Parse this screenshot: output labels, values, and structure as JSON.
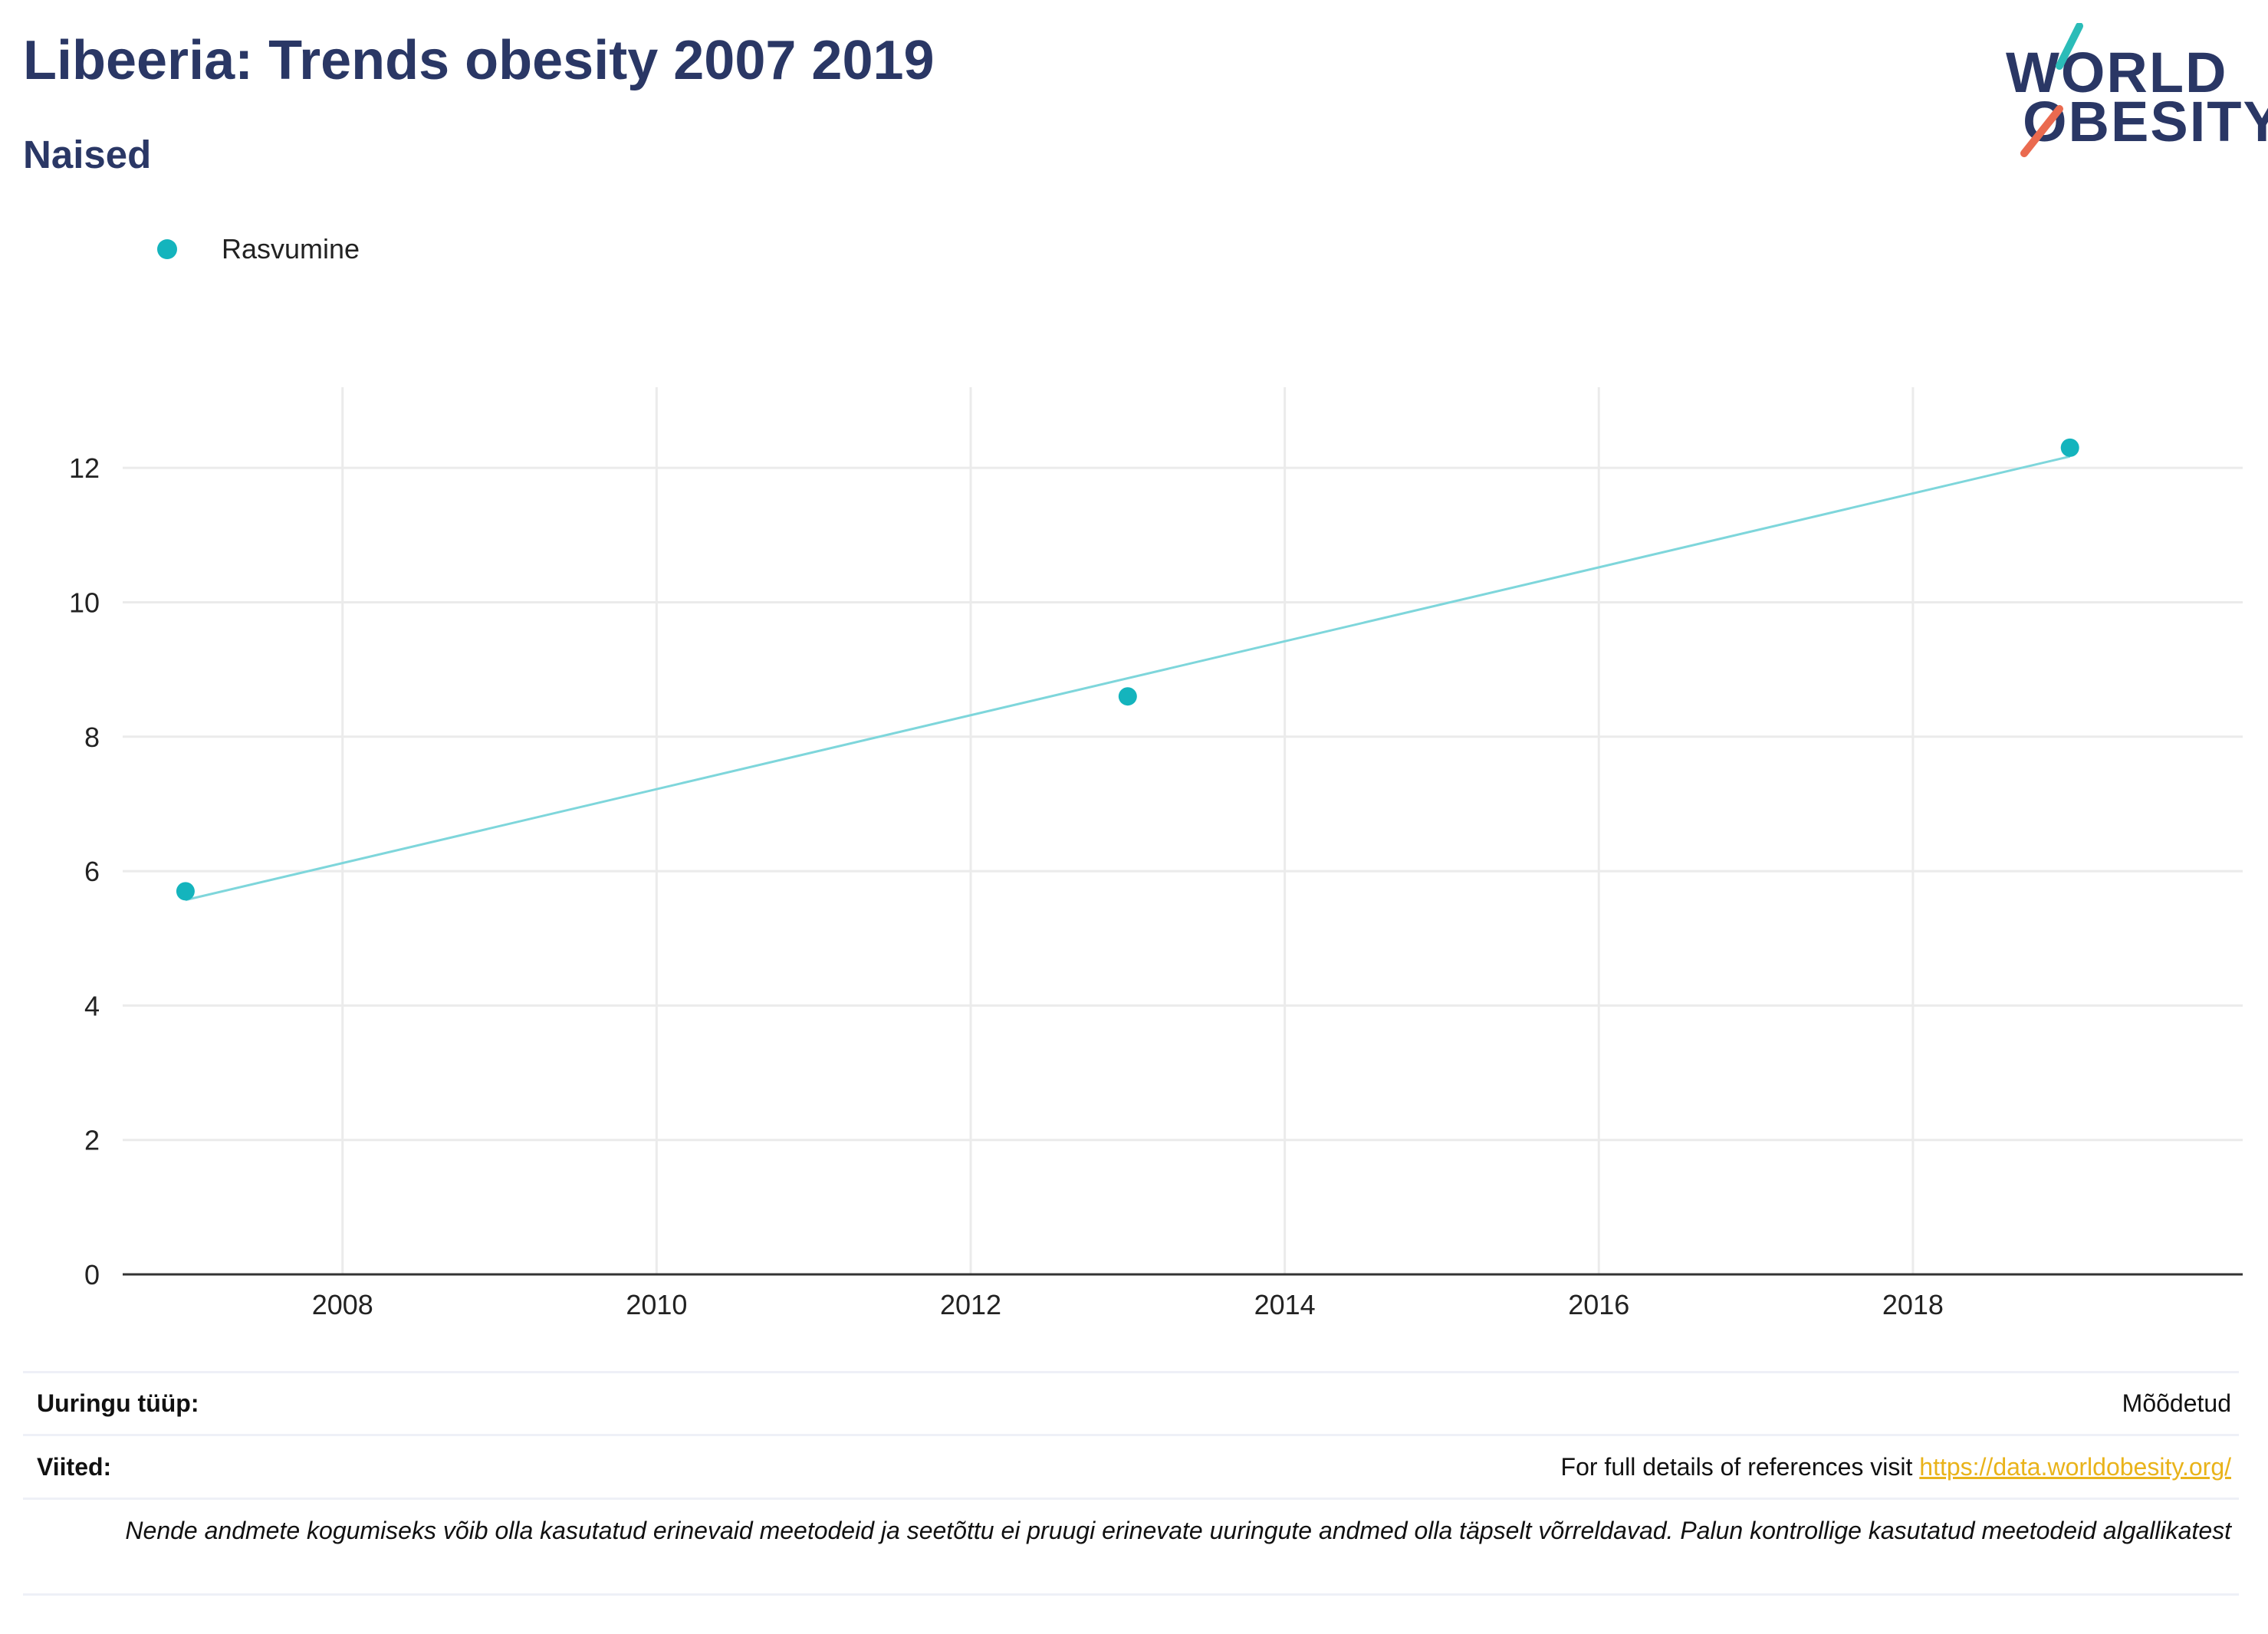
{
  "title": "Libeeria: Trends obesity 2007 2019",
  "subtitle": "Naised",
  "logo": {
    "line1": "WORLD",
    "line2": "OBESITY"
  },
  "colors": {
    "title": "#2a3765",
    "series": "#14b4bd",
    "trend": "#7ed6db",
    "link": "#e9b31a",
    "logo_teal": "#2bbcb8",
    "logo_red": "#ea6a4f"
  },
  "chart_data": {
    "type": "scatter",
    "title": "Libeeria: Trends obesity 2007 2019",
    "subtitle": "Naised",
    "series": [
      {
        "name": "Rasvumine",
        "x": [
          2007,
          2013,
          2019
        ],
        "y": [
          5.7,
          8.6,
          12.3
        ]
      }
    ],
    "trendline": {
      "x": [
        2007,
        2019
      ],
      "y": [
        5.57,
        12.17
      ]
    },
    "xlim": [
      2006.6,
      2020.1
    ],
    "ylim": [
      0,
      13.2
    ],
    "xticks": [
      "2008",
      "2010",
      "2012",
      "2014",
      "2016",
      "2018"
    ],
    "yticks": [
      "0",
      "2",
      "4",
      "6",
      "8",
      "10",
      "12"
    ],
    "grid": true,
    "legend": "top-left"
  },
  "info": {
    "survey_type_label": "Uuringu tüüp:",
    "survey_type_value": "Mõõdetud",
    "references_label": "Viited:",
    "references_text": "For full details of references visit ",
    "references_link": "https://data.worldobesity.org/",
    "note": "Nende andmete kogumiseks võib olla kasutatud erinevaid meetodeid ja seetõttu ei pruugi erinevate uuringute andmed olla täpselt võrreldavad. Palun kontrollige kasutatud meetodeid algallikatest"
  }
}
